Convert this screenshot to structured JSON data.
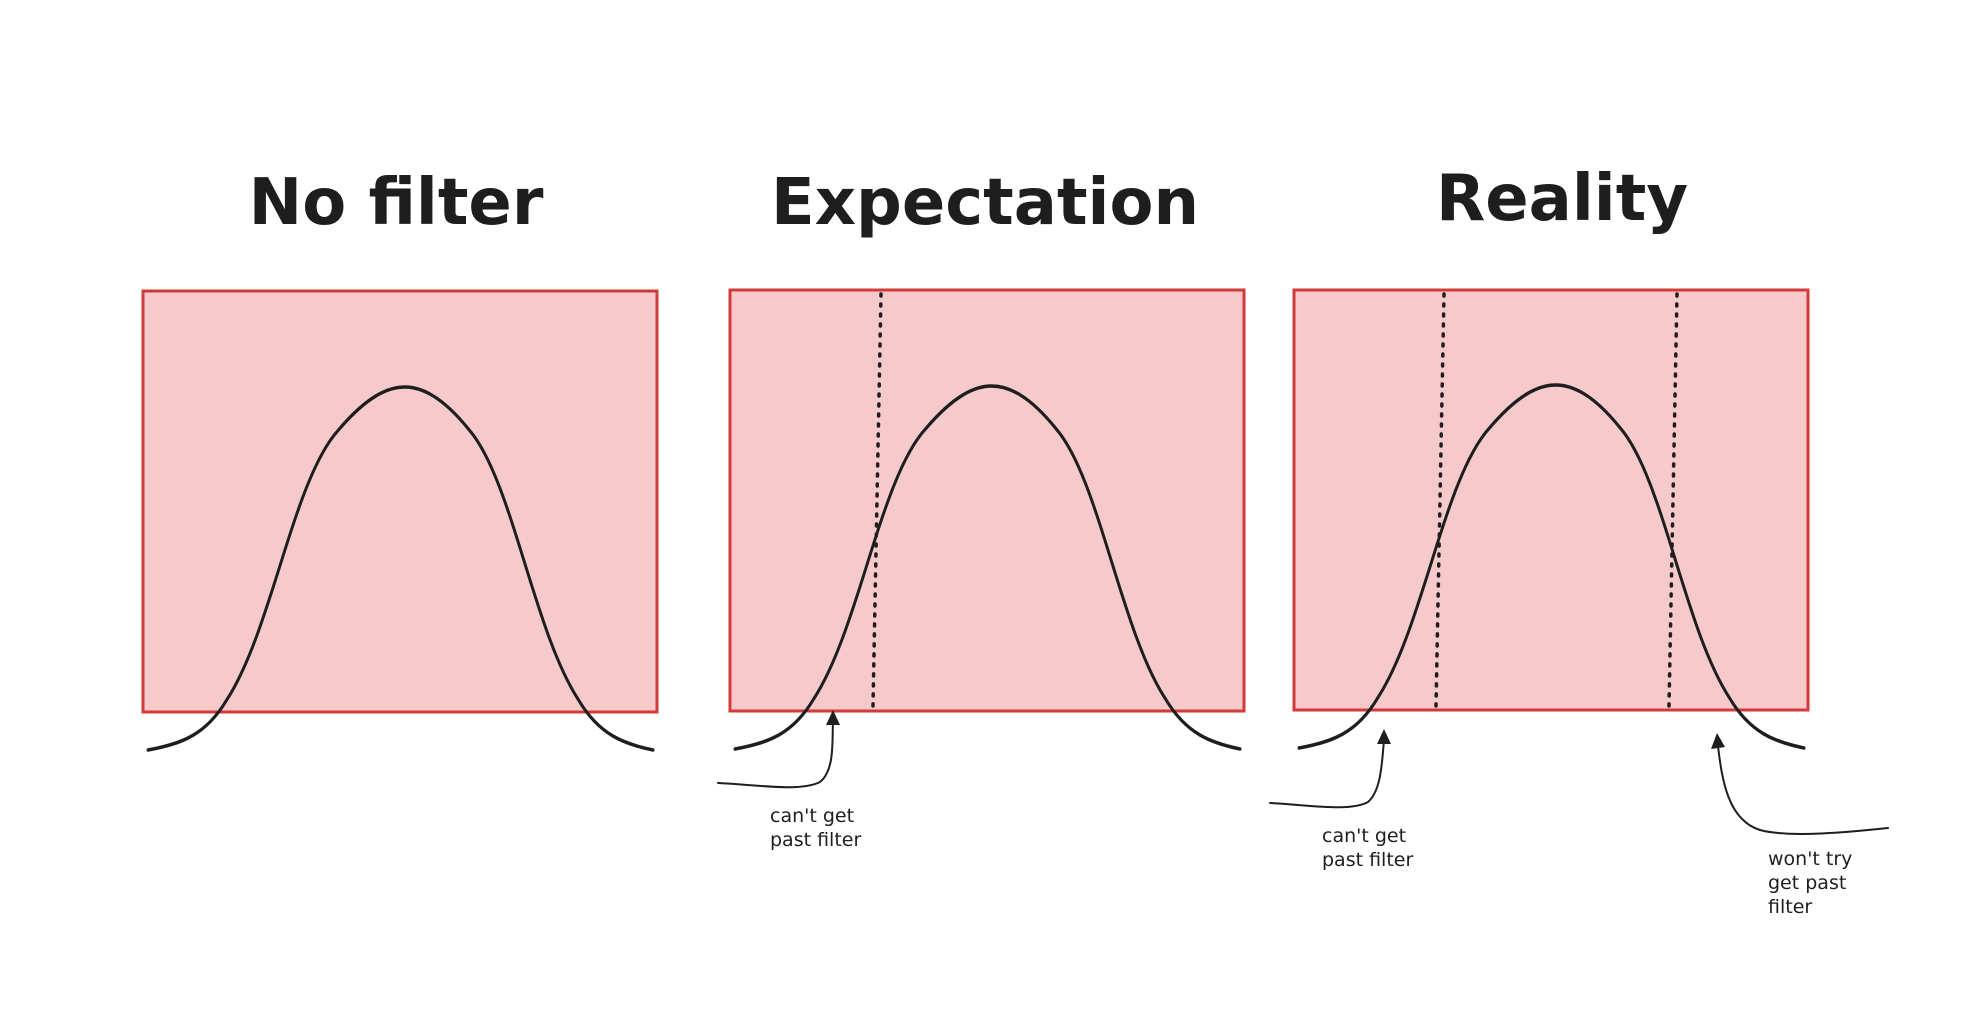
{
  "panels": [
    {
      "title": "No filter",
      "cutoffs": [],
      "notes": []
    },
    {
      "title": "Expectation",
      "cutoffs": [
        "left"
      ],
      "notes": [
        {
          "lines": [
            "can't get",
            "past filter"
          ]
        }
      ]
    },
    {
      "title": "Reality",
      "cutoffs": [
        "left",
        "right"
      ],
      "notes": [
        {
          "lines": [
            "can't get",
            "past filter"
          ]
        },
        {
          "lines": [
            "won't try",
            "get past",
            "filter"
          ]
        }
      ]
    }
  ],
  "colors": {
    "panel_fill": "#f6caca",
    "panel_border": "#d33a3a",
    "ink": "#1e1e1e"
  }
}
